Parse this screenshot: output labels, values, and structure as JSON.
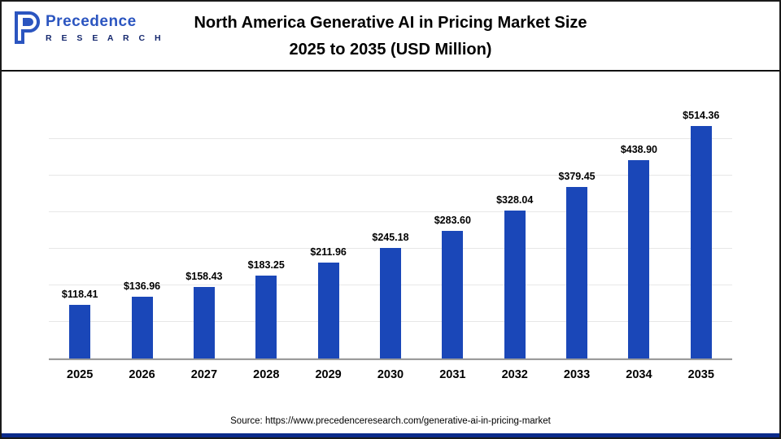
{
  "header": {
    "title_line1": "North America Generative AI in Pricing Market Size",
    "title_line2": "2025 to 2035 (USD Million)",
    "logo": {
      "line1": "Precedence",
      "line2": "R E S E A R C H"
    }
  },
  "chart_data": {
    "type": "bar",
    "title": "North America Generative AI in Pricing Market Size 2025 to 2035 (USD Million)",
    "categories": [
      "2025",
      "2026",
      "2027",
      "2028",
      "2029",
      "2030",
      "2031",
      "2032",
      "2033",
      "2034",
      "2035"
    ],
    "values": [
      118.41,
      136.96,
      158.43,
      183.25,
      211.96,
      245.18,
      283.6,
      328.04,
      379.45,
      438.9,
      514.36
    ],
    "value_labels": [
      "$118.41",
      "$136.96",
      "$158.43",
      "$183.25",
      "$211.96",
      "$245.18",
      "$283.60",
      "$328.04",
      "$379.45",
      "$438.90",
      "$514.36"
    ],
    "xlabel": "",
    "ylabel": "",
    "ylim": [
      0,
      560
    ],
    "grid": true,
    "legend": "none",
    "bar_color": "#1a47b8"
  },
  "footer": {
    "source": "Source: https://www.precedenceresearch.com/generative-ai-in-pricing-market"
  }
}
